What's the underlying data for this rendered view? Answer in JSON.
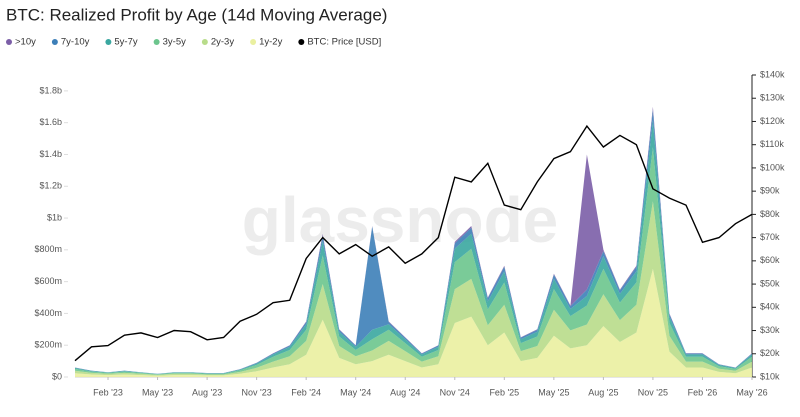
{
  "chart_data": {
    "type": "stacked_area",
    "title": "BTC: Realized Profit by Age (14d Moving Average)",
    "watermark": "glassnode",
    "legend": "top-left",
    "x": [
      "2022-12",
      "2023-01",
      "2023-02",
      "2023-03",
      "2023-04",
      "2023-05",
      "2023-06",
      "2023-07",
      "2023-08",
      "2023-09",
      "2023-10",
      "2023-11",
      "2023-12",
      "2024-01",
      "2024-02",
      "2024-03",
      "2024-04",
      "2024-05",
      "2024-06",
      "2024-07",
      "2024-08",
      "2024-09",
      "2024-10",
      "2024-11",
      "2024-12",
      "2025-01",
      "2025-02",
      "2025-03",
      "2025-04",
      "2025-05",
      "2025-06",
      "2025-07",
      "2025-08",
      "2025-09",
      "2025-10",
      "2025-11",
      "2025-12",
      "2026-01",
      "2026-02",
      "2026-03",
      "2026-04",
      "2026-05"
    ],
    "xlim": [
      "2022-12",
      "2026-05"
    ],
    "xticks": [
      {
        "value": "2023-02",
        "label": "Feb '23"
      },
      {
        "value": "2023-05",
        "label": "May '23"
      },
      {
        "value": "2023-08",
        "label": "Aug '23"
      },
      {
        "value": "2023-11",
        "label": "Nov '23"
      },
      {
        "value": "2024-02",
        "label": "Feb '24"
      },
      {
        "value": "2024-05",
        "label": "May '24"
      },
      {
        "value": "2024-08",
        "label": "Aug '24"
      },
      {
        "value": "2024-11",
        "label": "Nov '24"
      },
      {
        "value": "2025-02",
        "label": "Feb '25"
      },
      {
        "value": "2025-05",
        "label": "May '25"
      },
      {
        "value": "2025-08",
        "label": "Aug '25"
      },
      {
        "value": "2025-11",
        "label": "Nov '25"
      },
      {
        "value": "2026-02",
        "label": "Feb '26"
      },
      {
        "value": "2026-05",
        "label": "May '26"
      }
    ],
    "ylim": [
      0,
      1900000000.0
    ],
    "yticks": [
      {
        "value": 0,
        "label": "$0"
      },
      {
        "value": 200000000.0,
        "label": "$200m"
      },
      {
        "value": 400000000.0,
        "label": "$400m"
      },
      {
        "value": 600000000.0,
        "label": "$600m"
      },
      {
        "value": 800000000.0,
        "label": "$800m"
      },
      {
        "value": 1000000000.0,
        "label": "$1b"
      },
      {
        "value": 1200000000.0,
        "label": "$1.2b"
      },
      {
        "value": 1400000000.0,
        "label": "$1.4b"
      },
      {
        "value": 1600000000.0,
        "label": "$1.6b"
      },
      {
        "value": 1800000000.0,
        "label": "$1.8b"
      }
    ],
    "y2lim": [
      10000,
      140000
    ],
    "y2ticks": [
      {
        "value": 10000,
        "label": "$10k"
      },
      {
        "value": 20000,
        "label": "$20k"
      },
      {
        "value": 30000,
        "label": "$30k"
      },
      {
        "value": 40000,
        "label": "$40k"
      },
      {
        "value": 50000,
        "label": "$50k"
      },
      {
        "value": 60000,
        "label": "$60k"
      },
      {
        "value": 70000,
        "label": "$70k"
      },
      {
        "value": 80000,
        "label": "$80k"
      },
      {
        "value": 90000,
        "label": "$90k"
      },
      {
        "value": 100000,
        "label": "$100k"
      },
      {
        "value": 110000,
        "label": "$110k"
      },
      {
        "value": 120000,
        "label": "$120k"
      },
      {
        "value": 130000,
        "label": "$130k"
      },
      {
        "value": 140000,
        "label": "$140k"
      }
    ],
    "series": [
      {
        "name": ">10y",
        "color": "#7b5ea7",
        "values": [
          1000000.0,
          0,
          0,
          0,
          0,
          0,
          0,
          0,
          0,
          0,
          1000000.0,
          1000000.0,
          2000000.0,
          2000000.0,
          4000000.0,
          9000000.0,
          3000000.0,
          2000000.0,
          3000000.0,
          4000000.0,
          2000000.0,
          2000000.0,
          2000000.0,
          8000000.0,
          10000000.0,
          5000000.0,
          7000000.0,
          2000000.0,
          3000000.0,
          6000000.0,
          4000000.0,
          850000000.0,
          8000000.0,
          5000000.0,
          7000000.0,
          17000000.0,
          4000000.0,
          2000000.0,
          2000000.0,
          1000000.0,
          1000000.0,
          2000000.0
        ]
      },
      {
        "name": "7y-10y",
        "color": "#3d7fb8",
        "values": [
          2000000.0,
          2000000.0,
          1000000.0,
          2000000.0,
          1000000.0,
          1000000.0,
          1000000.0,
          1000000.0,
          1000000.0,
          1000000.0,
          2000000.0,
          4000000.0,
          6000000.0,
          8000000.0,
          14000000.0,
          36000000.0,
          12000000.0,
          8000000.0,
          650000000.0,
          14000000.0,
          10000000.0,
          6000000.0,
          8000000.0,
          34000000.0,
          38000000.0,
          20000000.0,
          28000000.0,
          10000000.0,
          12000000.0,
          26000000.0,
          18000000.0,
          40000000.0,
          32000000.0,
          22000000.0,
          28000000.0,
          68000000.0,
          16000000.0,
          6000000.0,
          6000000.0,
          3000000.0,
          2000000.0,
          6000000.0
        ]
      },
      {
        "name": "5y-7y",
        "color": "#3aa7a0",
        "values": [
          6000000.0,
          4000000.0,
          3000000.0,
          4000000.0,
          3000000.0,
          2000000.0,
          3000000.0,
          3000000.0,
          3000000.0,
          3000000.0,
          5000000.0,
          9000000.0,
          15000000.0,
          20000000.0,
          35000000.0,
          90000000.0,
          30000000.0,
          20000000.0,
          60000000.0,
          35000000.0,
          25000000.0,
          15000000.0,
          20000000.0,
          85000000.0,
          95000000.0,
          50000000.0,
          70000000.0,
          25000000.0,
          30000000.0,
          65000000.0,
          45000000.0,
          60000000.0,
          80000000.0,
          55000000.0,
          70000000.0,
          170000000.0,
          40000000.0,
          15000000.0,
          15000000.0,
          8000000.0,
          6000000.0,
          15000000.0
        ]
      },
      {
        "name": "3y-5y",
        "color": "#6cc58d",
        "values": [
          12000000.0,
          8000000.0,
          6000000.0,
          8000000.0,
          6000000.0,
          4000000.0,
          6000000.0,
          6000000.0,
          5000000.0,
          5000000.0,
          10000000.0,
          18000000.0,
          30000000.0,
          40000000.0,
          70000000.0,
          180000000.0,
          60000000.0,
          40000000.0,
          70000000.0,
          70000000.0,
          50000000.0,
          30000000.0,
          40000000.0,
          170000000.0,
          190000000.0,
          100000000.0,
          140000000.0,
          50000000.0,
          60000000.0,
          130000000.0,
          90000000.0,
          120000000.0,
          160000000.0,
          110000000.0,
          140000000.0,
          340000000.0,
          80000000.0,
          30000000.0,
          30000000.0,
          16000000.0,
          12000000.0,
          30000000.0
        ]
      },
      {
        "name": "2y-3y",
        "color": "#b8dc8a",
        "values": [
          15000000.0,
          10000000.0,
          8000000.0,
          10000000.0,
          8000000.0,
          5000000.0,
          8000000.0,
          8000000.0,
          6000000.0,
          6000000.0,
          12000000.0,
          22000000.0,
          37000000.0,
          50000000.0,
          87000000.0,
          225000000.0,
          75000000.0,
          50000000.0,
          67000000.0,
          87000000.0,
          63000000.0,
          37000000.0,
          50000000.0,
          213000000.0,
          237000000.0,
          125000000.0,
          175000000.0,
          63000000.0,
          75000000.0,
          163000000.0,
          113000000.0,
          130000000.0,
          200000000.0,
          138000000.0,
          175000000.0,
          425000000.0,
          100000000.0,
          37000000.0,
          37000000.0,
          20000000.0,
          15000000.0,
          37000000.0
        ]
      },
      {
        "name": "1y-2y",
        "color": "#eaf0a0",
        "values": [
          24000000.0,
          16000000.0,
          12000000.0,
          16000000.0,
          12000000.0,
          8000000.0,
          12000000.0,
          12000000.0,
          10000000.0,
          10000000.0,
          20000000.0,
          36000000.0,
          60000000.0,
          80000000.0,
          140000000.0,
          360000000.0,
          120000000.0,
          80000000.0,
          100000000.0,
          140000000.0,
          100000000.0,
          60000000.0,
          80000000.0,
          340000000.0,
          380000000.0,
          200000000.0,
          280000000.0,
          100000000.0,
          120000000.0,
          260000000.0,
          180000000.0,
          200000000.0,
          320000000.0,
          220000000.0,
          280000000.0,
          680000000.0,
          160000000.0,
          60000000.0,
          60000000.0,
          32000000.0,
          24000000.0,
          60000000.0
        ]
      },
      {
        "name": "BTC: Price [USD]",
        "color": "#000000",
        "axis": "y2",
        "values": [
          17000,
          23000,
          23500,
          28000,
          29000,
          27000,
          30000,
          29500,
          26000,
          27000,
          34000,
          37000,
          42000,
          43000,
          61000,
          70000,
          63000,
          67000,
          62000,
          66000,
          59000,
          63000,
          70000,
          96000,
          94000,
          102000,
          84000,
          82000,
          94000,
          104000,
          107000,
          118000,
          109000,
          114000,
          110000,
          91000,
          87000,
          84000,
          68000,
          70000,
          76000,
          80000
        ]
      }
    ]
  }
}
